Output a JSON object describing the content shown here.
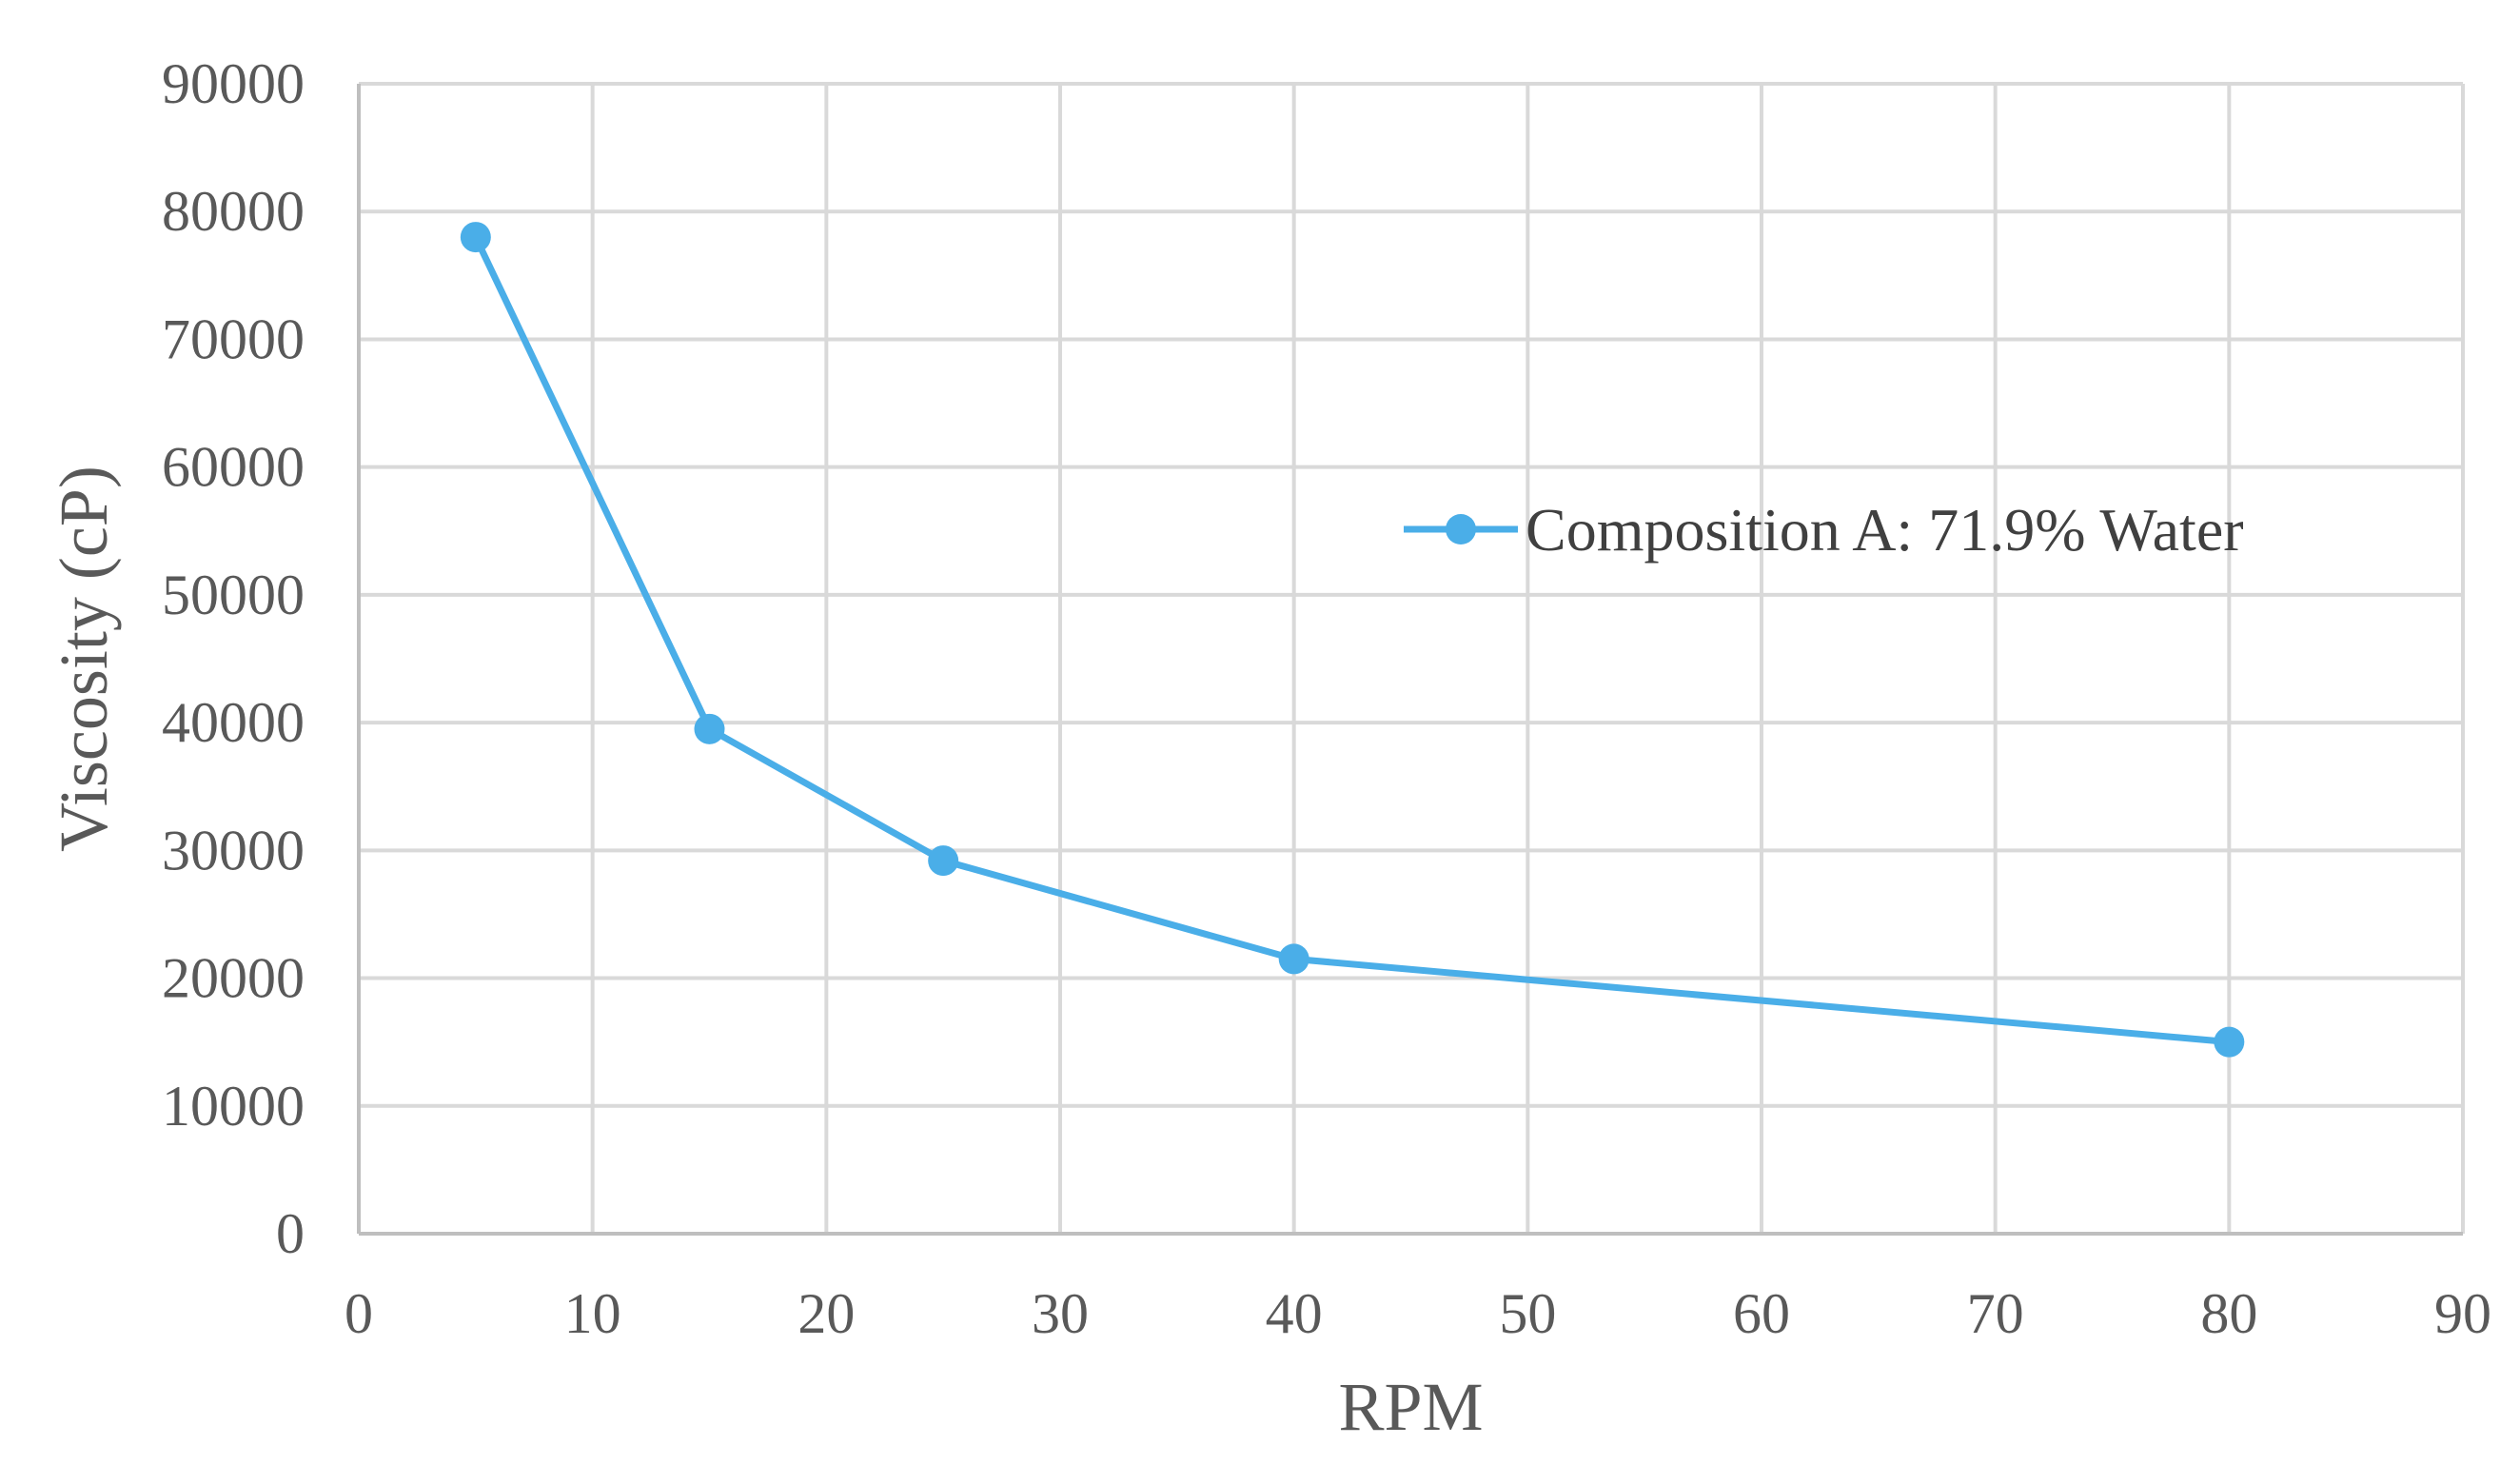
{
  "chart_data": {
    "type": "line",
    "title": "",
    "xlabel": "RPM",
    "ylabel": "Viscosity (cP)",
    "xlim": [
      0,
      90
    ],
    "ylim": [
      0,
      90000
    ],
    "x_ticks": [
      0,
      10,
      20,
      30,
      40,
      50,
      60,
      70,
      80,
      90
    ],
    "y_ticks": [
      0,
      10000,
      20000,
      30000,
      40000,
      50000,
      60000,
      70000,
      80000,
      90000
    ],
    "grid": true,
    "legend_position": "right",
    "series": [
      {
        "name": "Composition A: 71.9% Water",
        "color": "#4aaee8",
        "marker": "circle",
        "x": [
          5,
          15,
          25,
          40,
          80
        ],
        "y": [
          78000,
          39500,
          29200,
          21500,
          15000
        ]
      }
    ]
  }
}
